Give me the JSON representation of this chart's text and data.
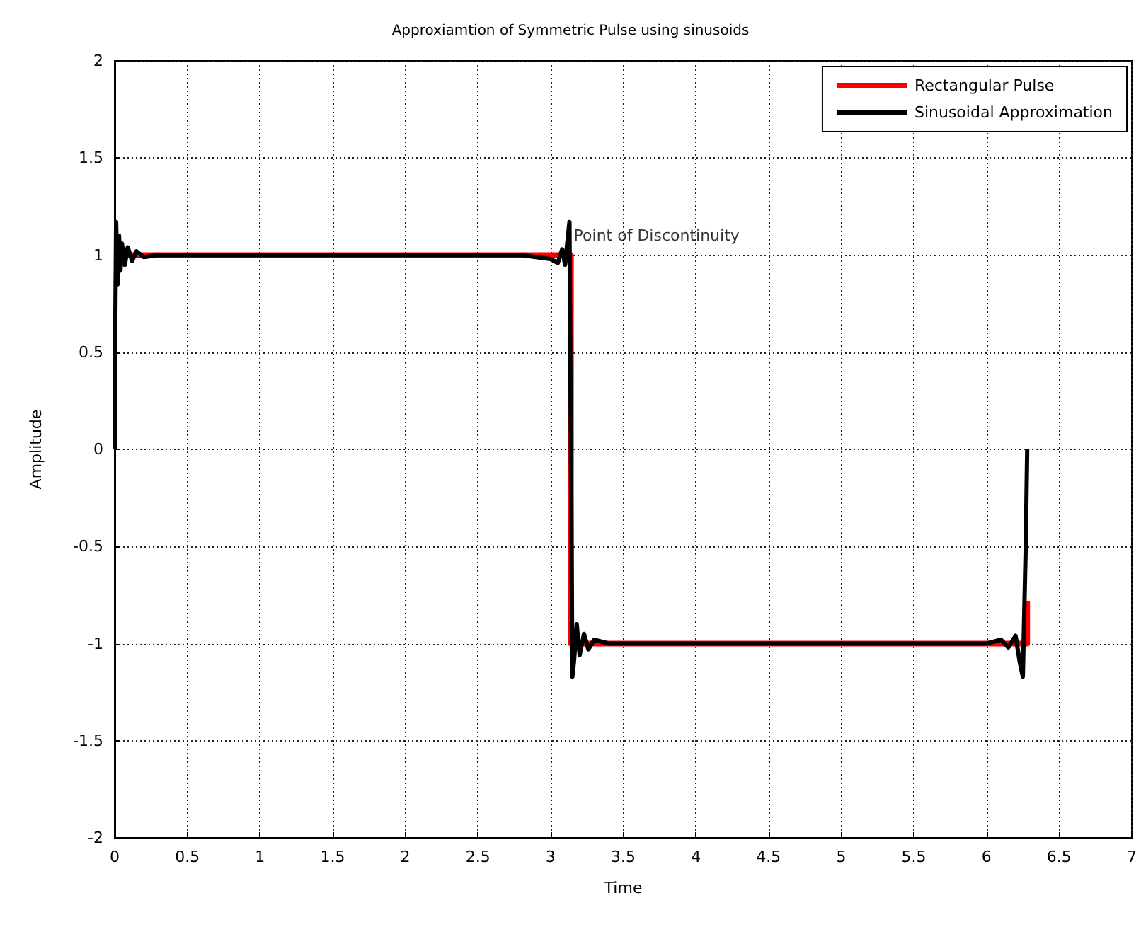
{
  "chart_data": {
    "type": "line",
    "title": "Approxiamtion of Symmetric Pulse using sinusoids",
    "xlabel": "Time",
    "ylabel": "Amplitude",
    "series": [
      {
        "name": "Rectangular Pulse",
        "color": "#ff0000",
        "x": [
          0,
          3.14,
          3.14,
          6.28,
          6.28
        ],
        "values": [
          1,
          1,
          -1,
          -1,
          -0.78
        ]
      },
      {
        "name": "Sinusoidal Approximation",
        "color": "#000000",
        "x": [
          0,
          0.005,
          0.01,
          0.02,
          0.03,
          0.04,
          0.05,
          0.07,
          0.09,
          0.12,
          0.15,
          0.2,
          0.3,
          0.5,
          1,
          1.5,
          2,
          2.5,
          2.8,
          3.0,
          3.05,
          3.08,
          3.1,
          3.12,
          3.13,
          3.14,
          3.15,
          3.16,
          3.18,
          3.2,
          3.23,
          3.26,
          3.3,
          3.4,
          3.6,
          4,
          4.5,
          5,
          5.5,
          6,
          6.1,
          6.15,
          6.2,
          6.23,
          6.25,
          6.27,
          6.28
        ],
        "values": [
          0,
          0.7,
          1.17,
          0.85,
          1.1,
          0.92,
          1.06,
          0.95,
          1.04,
          0.97,
          1.02,
          0.99,
          1.0,
          1.0,
          1.0,
          1.0,
          1.0,
          1.0,
          1.0,
          0.98,
          0.96,
          1.03,
          0.95,
          1.1,
          1.17,
          0,
          -1.17,
          -1.1,
          -0.9,
          -1.06,
          -0.95,
          -1.03,
          -0.98,
          -1.0,
          -1.0,
          -1.0,
          -1.0,
          -1.0,
          -1.0,
          -1.0,
          -0.98,
          -1.02,
          -0.96,
          -1.1,
          -1.17,
          -0.5,
          0
        ]
      }
    ],
    "annotations": [
      {
        "text": "Point of Discontinuity",
        "x": 3.14,
        "y": 1.1
      }
    ],
    "xlim": [
      0,
      7
    ],
    "xticks": [
      0,
      0.5,
      1,
      1.5,
      2,
      2.5,
      3,
      3.5,
      4,
      4.5,
      5,
      5.5,
      6,
      6.5,
      7
    ],
    "ylim": [
      -2,
      2
    ],
    "yticks": [
      -2,
      -1.5,
      -1,
      -0.5,
      0,
      0.5,
      1,
      1.5,
      2
    ],
    "grid": true,
    "legend": "top right",
    "marker": "none",
    "line_style": "solid"
  }
}
